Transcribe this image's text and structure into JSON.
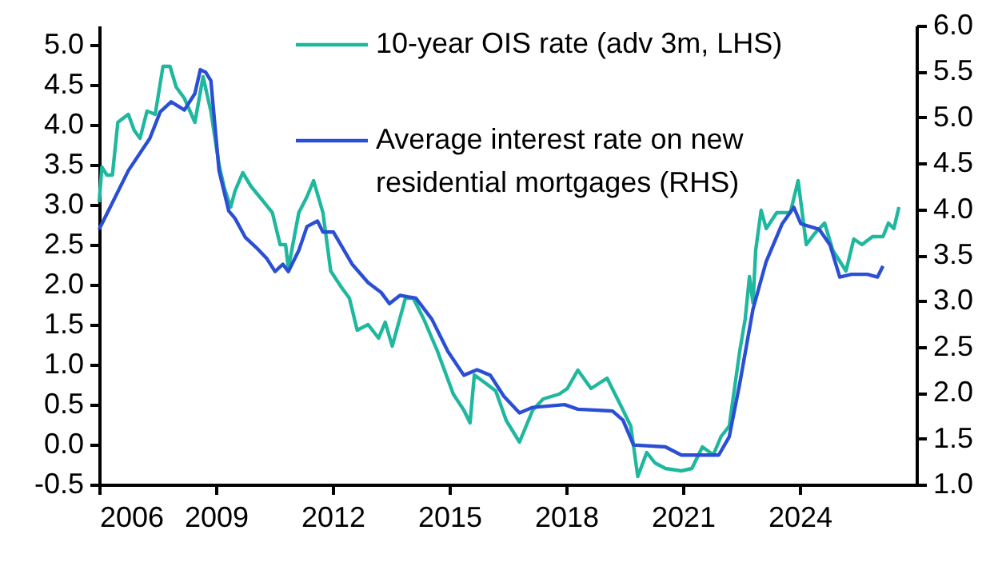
{
  "chart_data": {
    "type": "line",
    "xlim": [
      2006,
      2027
    ],
    "xticks": [
      2006,
      2009,
      2012,
      2015,
      2018,
      2021,
      2024
    ],
    "ylim": [
      -0.5,
      5.24
    ],
    "yticks": [
      {
        "value": -0.5,
        "label": "-0.5"
      },
      {
        "value": 0,
        "label": "0.0"
      },
      {
        "value": 0.5,
        "label": "0.5"
      },
      {
        "value": 1,
        "label": "1.0"
      },
      {
        "value": 1.5,
        "label": "1.5"
      },
      {
        "value": 2,
        "label": "2.0"
      },
      {
        "value": 2.5,
        "label": "2.5"
      },
      {
        "value": 3,
        "label": "3.0"
      },
      {
        "value": 3.5,
        "label": "3.5"
      },
      {
        "value": 4,
        "label": "4.0"
      },
      {
        "value": 4.5,
        "label": "4.5"
      },
      {
        "value": 5,
        "label": "5.0"
      }
    ],
    "y2lim": [
      1.0,
      6.0
    ],
    "y2ticks": [
      {
        "value": 1,
        "label": "1.0"
      },
      {
        "value": 1.5,
        "label": "1.5"
      },
      {
        "value": 2,
        "label": "2.0"
      },
      {
        "value": 2.5,
        "label": "2.5"
      },
      {
        "value": 3,
        "label": "3.0"
      },
      {
        "value": 3.5,
        "label": "3.5"
      },
      {
        "value": 4,
        "label": "4.0"
      },
      {
        "value": 4.5,
        "label": "4.5"
      },
      {
        "value": 5,
        "label": "5.0"
      },
      {
        "value": 5.5,
        "label": "5.5"
      },
      {
        "value": 6,
        "label": "6.0"
      }
    ],
    "grid": false,
    "legend": "top",
    "marker": "none",
    "line_style": "solid",
    "series": [
      {
        "name": "10-year OIS rate (adv 3m, LHS)",
        "color": "#1fb89e",
        "axis": "y",
        "x": [
          2006.0,
          2006.07,
          2006.2,
          2006.34,
          2006.48,
          2006.75,
          2006.9,
          2007.05,
          2007.23,
          2007.44,
          2007.64,
          2007.82,
          2007.98,
          2008.19,
          2008.46,
          2008.67,
          2008.87,
          2009.08,
          2009.22,
          2009.38,
          2009.49,
          2009.69,
          2009.9,
          2010.17,
          2010.45,
          2010.65,
          2010.79,
          2010.86,
          2011.13,
          2011.34,
          2011.51,
          2011.75,
          2011.95,
          2012.22,
          2012.43,
          2012.63,
          2012.91,
          2013.18,
          2013.35,
          2013.53,
          2013.87,
          2014.07,
          2014.34,
          2014.69,
          2015.1,
          2015.37,
          2015.53,
          2015.64,
          2015.92,
          2016.19,
          2016.46,
          2016.8,
          2017.14,
          2017.41,
          2017.82,
          2018.03,
          2018.3,
          2018.64,
          2019.05,
          2019.39,
          2019.66,
          2019.84,
          2020.07,
          2020.28,
          2020.55,
          2020.96,
          2021.23,
          2021.5,
          2021.78,
          2021.98,
          2022.19,
          2022.46,
          2022.6,
          2022.71,
          2022.8,
          2022.87,
          2023.01,
          2023.14,
          2023.41,
          2023.76,
          2023.96,
          2024.17,
          2024.37,
          2024.64,
          2024.85,
          2025.19,
          2025.39,
          2025.6,
          2025.87,
          2026.14,
          2026.28,
          2026.42,
          2026.55
        ],
        "values": [
          3.03,
          3.47,
          3.37,
          3.37,
          4.03,
          4.13,
          3.93,
          3.83,
          4.17,
          4.13,
          4.73,
          4.73,
          4.47,
          4.33,
          4.03,
          4.6,
          4.17,
          3.5,
          3.2,
          2.97,
          3.17,
          3.4,
          3.23,
          3.07,
          2.9,
          2.5,
          2.5,
          2.2,
          2.9,
          3.1,
          3.3,
          2.9,
          2.17,
          1.97,
          1.83,
          1.43,
          1.5,
          1.33,
          1.53,
          1.23,
          1.83,
          1.83,
          1.57,
          1.17,
          0.63,
          0.43,
          0.27,
          0.87,
          0.77,
          0.67,
          0.3,
          0.03,
          0.43,
          0.57,
          0.63,
          0.7,
          0.93,
          0.7,
          0.83,
          0.5,
          0.23,
          -0.4,
          -0.1,
          -0.23,
          -0.3,
          -0.33,
          -0.3,
          -0.03,
          -0.13,
          0.1,
          0.23,
          1.17,
          1.57,
          2.1,
          1.77,
          2.43,
          2.93,
          2.7,
          2.9,
          2.9,
          3.3,
          2.5,
          2.63,
          2.77,
          2.43,
          2.17,
          2.57,
          2.5,
          2.6,
          2.6,
          2.77,
          2.7,
          2.97
        ]
      },
      {
        "name": "Average interest rate on new residential mortgages (RHS)",
        "color": "#2b4fd4",
        "axis": "y2",
        "x": [
          2006.0,
          2006.2,
          2006.75,
          2007.3,
          2007.57,
          2007.85,
          2008.19,
          2008.46,
          2008.6,
          2008.74,
          2008.87,
          2009.08,
          2009.33,
          2009.49,
          2009.76,
          2010.04,
          2010.31,
          2010.52,
          2010.72,
          2010.86,
          2011.13,
          2011.34,
          2011.61,
          2011.75,
          2012.02,
          2012.5,
          2012.91,
          2013.25,
          2013.46,
          2013.73,
          2014.14,
          2014.55,
          2014.96,
          2015.37,
          2015.71,
          2016.05,
          2016.4,
          2016.8,
          2017.14,
          2017.96,
          2018.3,
          2019.19,
          2019.46,
          2019.73,
          2020.55,
          2020.96,
          2021.92,
          2022.19,
          2022.46,
          2022.8,
          2023.14,
          2023.55,
          2023.85,
          2024.03,
          2024.5,
          2024.78,
          2025.03,
          2025.33,
          2025.74,
          2026.0,
          2026.14
        ],
        "values": [
          3.78,
          3.95,
          4.42,
          4.77,
          5.06,
          5.17,
          5.08,
          5.26,
          5.52,
          5.49,
          5.4,
          4.42,
          3.98,
          3.9,
          3.69,
          3.58,
          3.46,
          3.32,
          3.4,
          3.32,
          3.55,
          3.81,
          3.87,
          3.75,
          3.75,
          3.4,
          3.2,
          3.09,
          2.97,
          3.06,
          3.03,
          2.8,
          2.45,
          2.19,
          2.25,
          2.19,
          1.96,
          1.78,
          1.84,
          1.87,
          1.82,
          1.8,
          1.7,
          1.43,
          1.41,
          1.32,
          1.32,
          1.52,
          2.1,
          2.91,
          3.43,
          3.84,
          4.02,
          3.84,
          3.78,
          3.61,
          3.26,
          3.29,
          3.29,
          3.26,
          3.38
        ]
      }
    ]
  }
}
